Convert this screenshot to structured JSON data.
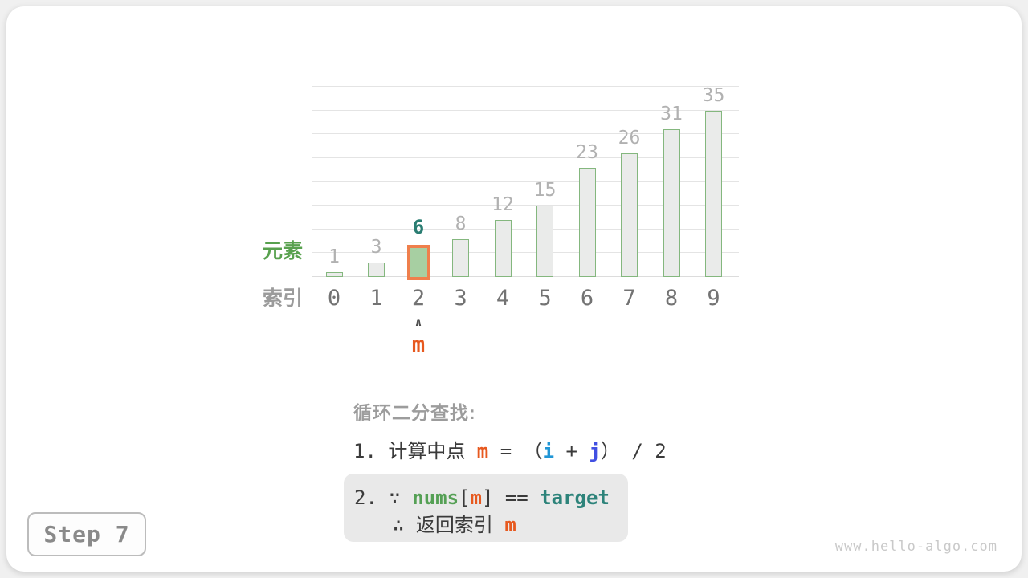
{
  "page": {
    "step_label": "Step 7",
    "watermark": "www.hello-algo.com"
  },
  "chart_data": {
    "type": "bar",
    "title": "",
    "categories": [
      "0",
      "1",
      "2",
      "3",
      "4",
      "5",
      "6",
      "7",
      "8",
      "9"
    ],
    "values": [
      1,
      3,
      6,
      8,
      12,
      15,
      23,
      26,
      31,
      35
    ],
    "highlight": {
      "index": 2,
      "value": 6
    },
    "ylim": [
      0,
      40
    ],
    "grid_step": 5,
    "grid": "horizontal-only",
    "legend": "none",
    "axis_row_labels": {
      "values_row": "元素",
      "index_row": "索引"
    },
    "pointer": {
      "at_index": 2,
      "caret": "∧",
      "label": "m"
    },
    "colors": {
      "bar_fill": "#eaebea",
      "bar_stroke": "#84b77e",
      "highlight_fill": "#a7cfa2",
      "highlight_border": "#ef7f4c",
      "highlight_value_label": "#2a7d72",
      "value_label": "#b1b1b1",
      "index_label": "#737373",
      "accent_orange": "#e7591f",
      "accent_green": "#55a055",
      "accent_teal": "#2d837a",
      "accent_blue_i": "#2196d6",
      "accent_blue_j": "#4150e2"
    }
  },
  "panel": {
    "heading": "循环二分查找:",
    "line1": {
      "prefix": "1. 计算中点 ",
      "m": "m",
      "eq": " = （",
      "i": "i",
      "plus": " + ",
      "j": "j",
      "suffix": "） / 2"
    },
    "line2a": {
      "prefix": "2. ∵ ",
      "nums": "nums",
      "lbracket": "[",
      "m": "m",
      "rbracket": "]",
      "eq": " == ",
      "target": "target"
    },
    "line2b": {
      "prefix": "∴ 返回索引 ",
      "m": "m"
    }
  }
}
